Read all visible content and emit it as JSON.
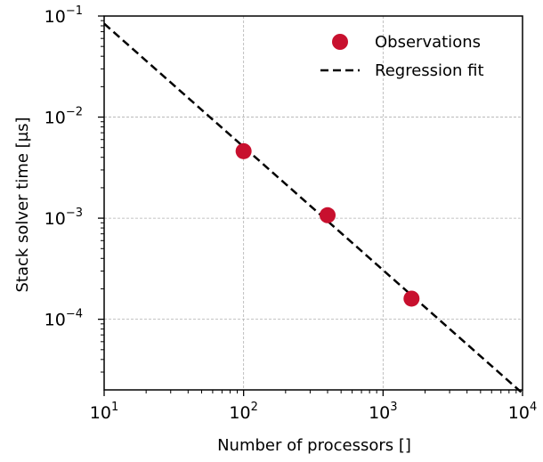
{
  "chart_data": {
    "type": "scatter",
    "xlabel": "Number of processors []",
    "ylabel": "Stack solver time [µs]",
    "xscale": "log",
    "yscale": "log",
    "xlim": [
      10,
      10000
    ],
    "ylim": [
      2e-05,
      0.1
    ],
    "grid": true,
    "legend_position": "top-right",
    "x_ticks": [
      {
        "base": "10",
        "exp": "1",
        "value": 10
      },
      {
        "base": "10",
        "exp": "2",
        "value": 100
      },
      {
        "base": "10",
        "exp": "3",
        "value": 1000
      },
      {
        "base": "10",
        "exp": "4",
        "value": 10000
      }
    ],
    "y_ticks": [
      {
        "base": "10",
        "exp": "−4",
        "value": 0.0001
      },
      {
        "base": "10",
        "exp": "−3",
        "value": 0.001
      },
      {
        "base": "10",
        "exp": "−2",
        "value": 0.01
      },
      {
        "base": "10",
        "exp": "−1",
        "value": 0.1
      }
    ],
    "series": [
      {
        "name": "Observations",
        "kind": "scatter",
        "color": "#c8102e",
        "x": [
          100,
          400,
          1600
        ],
        "y": [
          0.0046,
          0.00107,
          0.00016
        ]
      },
      {
        "name": "Regression fit",
        "kind": "line",
        "style": "dashed",
        "color": "#000000",
        "x": [
          10,
          10000
        ],
        "y": [
          0.084,
          1.85e-05
        ]
      }
    ]
  }
}
